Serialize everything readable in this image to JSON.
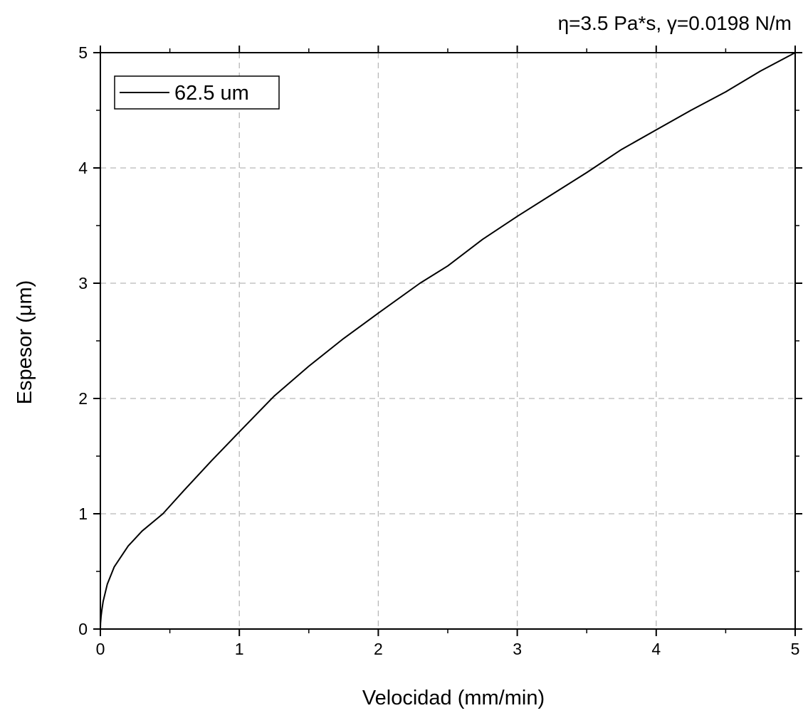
{
  "chart_data": {
    "type": "line",
    "title": "η=3.5 Pa*s, γ=0.0198 N/m",
    "xlabel": "Velocidad (mm/min)",
    "ylabel": "Espesor (μm)",
    "xlim": [
      0,
      5
    ],
    "ylim": [
      0,
      5
    ],
    "x_ticks": [
      "0",
      "1",
      "2",
      "3",
      "4",
      "5"
    ],
    "y_ticks": [
      "0",
      "1",
      "2",
      "3",
      "4",
      "5"
    ],
    "grid": true,
    "legend_position": "top-left",
    "series": [
      {
        "name": "62.5 um",
        "color": "#000000",
        "x": [
          0,
          0.001,
          0.005,
          0.01,
          0.02,
          0.05,
          0.1,
          0.2,
          0.3,
          0.45,
          0.6,
          0.8,
          1.0,
          1.25,
          1.5,
          1.75,
          2.0,
          2.3,
          2.5,
          2.75,
          3.0,
          3.25,
          3.5,
          3.75,
          4.0,
          4.25,
          4.5,
          4.75,
          5.0
        ],
        "y": [
          0,
          0.05,
          0.11,
          0.16,
          0.24,
          0.39,
          0.54,
          0.72,
          0.85,
          1.0,
          1.2,
          1.46,
          1.71,
          2.02,
          2.28,
          2.52,
          2.74,
          3.0,
          3.15,
          3.38,
          3.58,
          3.77,
          3.96,
          4.16,
          4.33,
          4.5,
          4.66,
          4.84,
          5.0
        ]
      }
    ]
  }
}
